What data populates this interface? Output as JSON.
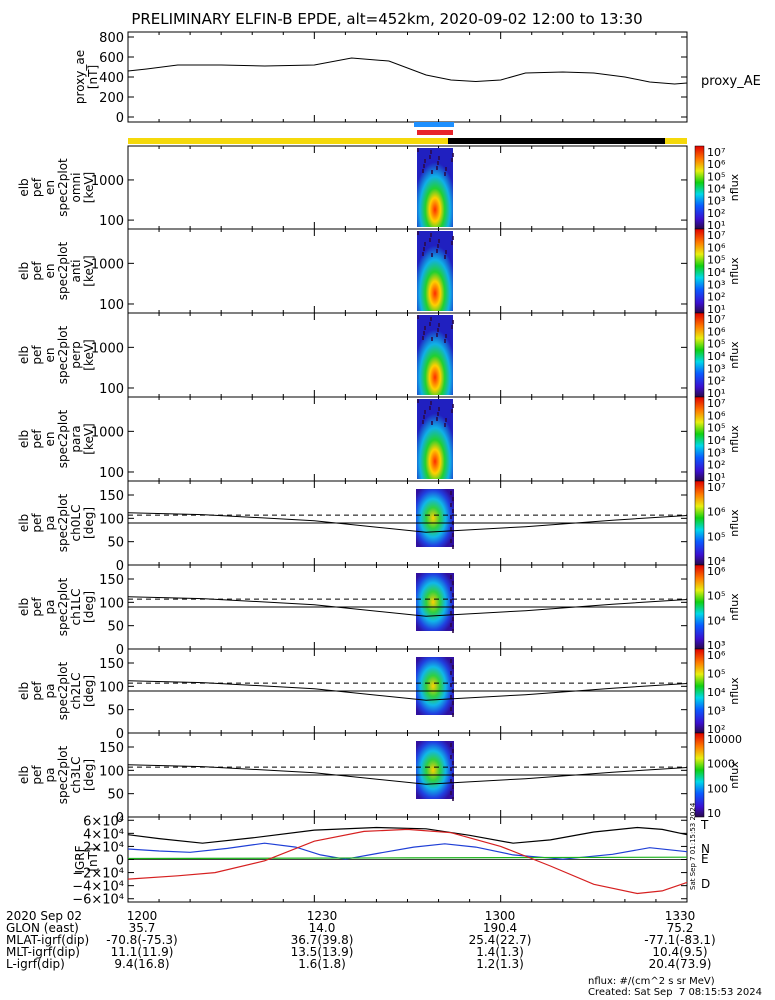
{
  "title": "PRELIMINARY ELFIN-B EPDE, alt=452km, 2020-09-02 12:00 to 13:30",
  "colors": {
    "gold": "#f5d90a",
    "black": "#000000",
    "blue": "#1e90ff",
    "red": "#e8232a",
    "grf_T": "#000000",
    "grf_N": "#1f3fd6",
    "grf_E": "#19b219",
    "grf_D": "#d62020"
  },
  "chart_data": [
    {
      "type": "line",
      "name": "proxy_ae",
      "ylabel": "proxy_ae\n[nT]",
      "legend": "proxy_AE",
      "ylim": [
        -50,
        850
      ],
      "yticks": [
        0,
        200,
        400,
        600,
        800
      ],
      "xlim": [
        0,
        90
      ],
      "x": [
        0,
        3,
        8,
        15,
        22,
        30,
        36,
        42,
        48,
        52,
        56,
        60,
        64,
        70,
        75,
        80,
        84,
        88,
        90
      ],
      "y": [
        460,
        480,
        520,
        520,
        510,
        520,
        590,
        560,
        420,
        370,
        355,
        370,
        440,
        450,
        440,
        400,
        350,
        330,
        340
      ]
    },
    {
      "type": "heatmap",
      "name": "en_spec2plot_omni",
      "ylabel": "elb\npef\nen\nspec2plot\nomni\n[keV]",
      "ylog": true,
      "ylim": [
        60,
        7000
      ],
      "yticks": [
        100,
        1000
      ],
      "zlabel": "nflux",
      "zlog": true,
      "zlim": [
        10,
        10000000
      ],
      "zticks": [
        "10⁷",
        "10⁶",
        "10⁵",
        "10⁴",
        "10³",
        "10²",
        "10¹"
      ]
    },
    {
      "type": "heatmap",
      "name": "en_spec2plot_anti",
      "ylabel": "elb\npef\nen\nspec2plot\nanti\n[keV]",
      "ylog": true,
      "ylim": [
        60,
        7000
      ],
      "yticks": [
        100,
        1000
      ],
      "zlabel": "nflux",
      "zlog": true,
      "zlim": [
        10,
        10000000
      ],
      "zticks": [
        "10⁷",
        "10⁶",
        "10⁵",
        "10⁴",
        "10³",
        "10²",
        "10¹"
      ]
    },
    {
      "type": "heatmap",
      "name": "en_spec2plot_perp",
      "ylabel": "elb\npef\nen\nspec2plot\nperp\n[keV]",
      "ylog": true,
      "ylim": [
        60,
        7000
      ],
      "yticks": [
        100,
        1000
      ],
      "zlabel": "nflux",
      "zlog": true,
      "zlim": [
        10,
        10000000
      ],
      "zticks": [
        "10⁷",
        "10⁶",
        "10⁵",
        "10⁴",
        "10³",
        "10²",
        "10¹"
      ]
    },
    {
      "type": "heatmap",
      "name": "en_spec2plot_para",
      "ylabel": "elb\npef\nen\nspec2plot\npara\n[keV]",
      "ylog": true,
      "ylim": [
        60,
        7000
      ],
      "yticks": [
        100,
        1000
      ],
      "zlabel": "nflux",
      "zlog": true,
      "zlim": [
        10,
        10000000
      ],
      "zticks": [
        "10⁷",
        "10⁶",
        "10⁵",
        "10⁴",
        "10³",
        "10²",
        "10¹"
      ]
    },
    {
      "type": "heatmap",
      "name": "pa_spec2plot_ch0LC",
      "ylabel": "elb\npef\npa\nspec2plot\nch0LC\n[deg]",
      "ylim": [
        0,
        180
      ],
      "yticks": [
        0,
        50,
        100,
        150
      ],
      "zlabel": "nflux",
      "zlog": true,
      "zticks": [
        "10⁷",
        "10⁶",
        "10⁵",
        "10⁴"
      ]
    },
    {
      "type": "heatmap",
      "name": "pa_spec2plot_ch1LC",
      "ylabel": "elb\npef\npa\nspec2plot\nch1LC\n[deg]",
      "ylim": [
        0,
        180
      ],
      "yticks": [
        0,
        50,
        100,
        150
      ],
      "zlabel": "nflux",
      "zlog": true,
      "zticks": [
        "10⁶",
        "10⁵",
        "10⁴",
        "10³"
      ]
    },
    {
      "type": "heatmap",
      "name": "pa_spec2plot_ch2LC",
      "ylabel": "elb\npef\npa\nspec2plot\nch2LC\n[deg]",
      "ylim": [
        0,
        180
      ],
      "yticks": [
        0,
        50,
        100,
        150
      ],
      "zlabel": "nflux",
      "zlog": true,
      "zticks": [
        "10⁶",
        "10⁵",
        "10⁴",
        "10³",
        "10²"
      ]
    },
    {
      "type": "heatmap",
      "name": "pa_spec2plot_ch3LC",
      "ylabel": "elb\npef\npa\nspec2plot\nch3LC\n[deg]",
      "ylim": [
        0,
        180
      ],
      "yticks": [
        0,
        50,
        100,
        150
      ],
      "zlabel": "nflux",
      "zlog": true,
      "zticks": [
        "10000",
        "1000",
        "100",
        "10"
      ]
    },
    {
      "type": "line",
      "name": "igrf",
      "ylabel": "IGRF\n[nT]",
      "ylim": [
        -65000,
        65000
      ],
      "yticks": [
        60000,
        40000,
        20000,
        0,
        -20000,
        -40000,
        -60000
      ],
      "ytick_labels": [
        "6×10⁴",
        "4×10⁴",
        "2×10⁴",
        "0",
        "−2×10⁴",
        "−4×10⁴",
        "−6×10⁴"
      ],
      "xlim": [
        0,
        90
      ],
      "series": [
        {
          "name": "T",
          "x": [
            0,
            5,
            12,
            20,
            30,
            40,
            48,
            55,
            62,
            68,
            75,
            82,
            86,
            90
          ],
          "y": [
            38000,
            32000,
            25000,
            33000,
            45000,
            49000,
            47000,
            37000,
            25000,
            30000,
            42000,
            49000,
            46000,
            38000
          ]
        },
        {
          "name": "N",
          "x": [
            0,
            5,
            10,
            16,
            22,
            27,
            31,
            35,
            40,
            46,
            51,
            56,
            62,
            70,
            78,
            84,
            90
          ],
          "y": [
            16000,
            13000,
            11000,
            17000,
            25000,
            19000,
            7000,
            500,
            9000,
            19000,
            24000,
            19000,
            7000,
            500,
            8000,
            18000,
            12000
          ]
        },
        {
          "name": "E",
          "x": [
            0,
            45,
            90
          ],
          "y": [
            1500,
            2500,
            3500
          ]
        },
        {
          "name": "D",
          "x": [
            0,
            8,
            14,
            22,
            30,
            38,
            45,
            52,
            60,
            68,
            75,
            82,
            86,
            90
          ],
          "y": [
            -30000,
            -25000,
            -20000,
            -2000,
            28000,
            43000,
            46000,
            41000,
            20000,
            -10000,
            -38000,
            -52000,
            -48000,
            -35000
          ]
        }
      ]
    }
  ],
  "side_date": "Sat Sep  7 01:15:53 2024",
  "footer": {
    "rows": [
      {
        "label": "2020 Sep 02",
        "cols": [
          "1200",
          "1230",
          "1300",
          "1330"
        ]
      },
      {
        "label": "GLON (east)",
        "cols": [
          "35.7",
          "14.0",
          "190.4",
          "75.2"
        ]
      },
      {
        "label": "MLAT-igrf(dip)",
        "cols": [
          "-70.8(-75.3)",
          "36.7(39.8)",
          "25.4(22.7)",
          "-77.1(-83.1)"
        ]
      },
      {
        "label": "MLT-igrf(dip)",
        "cols": [
          "11.1(11.9)",
          "13.5(13.9)",
          "1.4(1.3)",
          "10.4(9.5)"
        ]
      },
      {
        "label": "L-igrf(dip)",
        "cols": [
          "9.4(16.8)",
          "1.6(1.8)",
          "1.2(1.3)",
          "20.4(73.9)"
        ]
      }
    ],
    "nflux_unit": "nflux: #/(cm^2 s sr MeV)",
    "created": "Created: Sat Sep  7 08:15:53 2024"
  }
}
